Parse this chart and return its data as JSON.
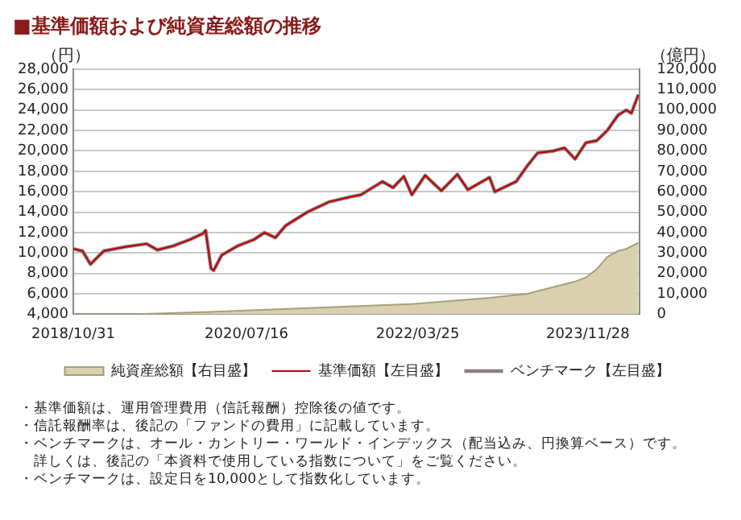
{
  "chart_data": {
    "type": "line",
    "title": "■基準価額および純資産総額の推移",
    "ylabel": "（円）",
    "y2label": "（億円）",
    "xlim": [
      "2018-10-31",
      "2024-05-31"
    ],
    "xticks": [
      {
        "value": "2018-10-31",
        "label": "2018/10/31"
      },
      {
        "value": "2020-07-16",
        "label": "2020/07/16"
      },
      {
        "value": "2022-03-25",
        "label": "2022/03/25"
      },
      {
        "value": "2023-11-28",
        "label": "2023/11/28"
      }
    ],
    "ylim": [
      4000,
      28000
    ],
    "yticks": [
      {
        "value": 4000,
        "label": "4,000"
      },
      {
        "value": 6000,
        "label": "6,000"
      },
      {
        "value": 8000,
        "label": "8,000"
      },
      {
        "value": 10000,
        "label": "10,000"
      },
      {
        "value": 12000,
        "label": "12,000"
      },
      {
        "value": 14000,
        "label": "14,000"
      },
      {
        "value": 16000,
        "label": "16,000"
      },
      {
        "value": 18000,
        "label": "18,000"
      },
      {
        "value": 20000,
        "label": "20,000"
      },
      {
        "value": 22000,
        "label": "22,000"
      },
      {
        "value": 24000,
        "label": "24,000"
      },
      {
        "value": 26000,
        "label": "26,000"
      },
      {
        "value": 28000,
        "label": "28,000"
      }
    ],
    "y2lim": [
      0,
      120000
    ],
    "y2ticks": [
      0,
      {
        "value": 10000,
        "label": "10,000"
      },
      {
        "value": 20000,
        "label": "20,000"
      },
      {
        "value": 30000,
        "label": "30,000"
      },
      {
        "value": 40000,
        "label": "40,000"
      },
      {
        "value": 50000,
        "label": "50,000"
      },
      {
        "value": 60000,
        "label": "60,000"
      },
      {
        "value": 70000,
        "label": "70,000"
      },
      {
        "value": 80000,
        "label": "80,000"
      },
      {
        "value": 90000,
        "label": "90,000"
      },
      {
        "value": 100000,
        "label": "100,000"
      },
      {
        "value": 110000,
        "label": "110,000"
      },
      {
        "value": 120000,
        "label": "120,000"
      }
    ],
    "grid": "y",
    "legend": "bottom",
    "series": [
      {
        "name": "純資産総額【右目盛】",
        "type": "area",
        "axis": "y2",
        "color": "#d8d0b0",
        "x": [
          "2018-10-31",
          "2019-06-01",
          "2020-02-06",
          "2021-02-20",
          "2022-03-04",
          "2022-12-09",
          "2023-04-23",
          "2023-10-13",
          "2023-11-21",
          "2023-12-30",
          "2024-02-06",
          "2024-03-16",
          "2024-04-14",
          "2024-05-28"
        ],
        "values": [
          0,
          0,
          1000,
          3000,
          5000,
          8000,
          10000,
          16000,
          18000,
          22000,
          28000,
          31000,
          32000,
          35000
        ]
      },
      {
        "name": "基準価額【左目盛】",
        "type": "line",
        "color": "#c00000",
        "x": [
          "2018-10-31",
          "2018-12-03",
          "2019-01-01",
          "2019-02-18",
          "2019-05-06",
          "2019-07-22",
          "2019-08-30",
          "2019-10-27",
          "2019-12-24",
          "2020-02-10",
          "2020-02-20",
          "2020-03-10",
          "2020-03-20",
          "2020-04-18",
          "2020-06-15",
          "2020-08-11",
          "2020-09-19",
          "2020-10-28",
          "2020-12-05",
          "2021-02-20",
          "2021-05-09",
          "2021-07-25",
          "2021-09-01",
          "2021-11-18",
          "2021-12-26",
          "2022-02-03",
          "2022-03-04",
          "2022-04-21",
          "2022-06-18",
          "2022-08-15",
          "2022-09-22",
          "2022-12-09",
          "2022-12-28",
          "2023-03-15",
          "2023-04-23",
          "2023-05-31",
          "2023-07-28",
          "2023-09-05",
          "2023-10-13",
          "2023-11-21",
          "2023-12-30",
          "2024-02-06",
          "2024-03-16",
          "2024-04-14",
          "2024-05-03",
          "2024-05-28"
        ],
        "values": [
          10400,
          10200,
          8900,
          10200,
          10600,
          10900,
          10300,
          10700,
          11300,
          11900,
          12200,
          8500,
          8300,
          9800,
          10700,
          11300,
          12000,
          11500,
          12700,
          14000,
          15000,
          15500,
          15700,
          17000,
          16400,
          17500,
          15700,
          17600,
          16100,
          17700,
          16200,
          17400,
          16000,
          17000,
          18500,
          19800,
          20000,
          20300,
          19200,
          20800,
          21000,
          22000,
          23500,
          24000,
          23700,
          25500
        ]
      },
      {
        "name": "ベンチマーク【左目盛】",
        "type": "line",
        "color": "#8c8080",
        "x": [
          "2018-10-31",
          "2018-12-03",
          "2019-01-01",
          "2019-02-18",
          "2019-05-06",
          "2019-07-22",
          "2019-08-30",
          "2019-10-27",
          "2019-12-24",
          "2020-02-10",
          "2020-02-20",
          "2020-03-10",
          "2020-03-20",
          "2020-04-18",
          "2020-06-15",
          "2020-08-11",
          "2020-09-19",
          "2020-10-28",
          "2020-12-05",
          "2021-02-20",
          "2021-05-09",
          "2021-07-25",
          "2021-09-01",
          "2021-11-18",
          "2021-12-26",
          "2022-02-03",
          "2022-03-04",
          "2022-04-21",
          "2022-06-18",
          "2022-08-15",
          "2022-09-22",
          "2022-12-09",
          "2022-12-28",
          "2023-03-15",
          "2023-04-23",
          "2023-05-31",
          "2023-07-28",
          "2023-09-05",
          "2023-10-13",
          "2023-11-21",
          "2023-12-30",
          "2024-02-06",
          "2024-03-16",
          "2024-04-14",
          "2024-05-03",
          "2024-05-28"
        ],
        "values": [
          10400,
          10200,
          8900,
          10200,
          10600,
          10900,
          10300,
          10700,
          11300,
          11900,
          12200,
          8500,
          8300,
          9800,
          10700,
          11300,
          12000,
          11500,
          12700,
          14000,
          15000,
          15500,
          15700,
          17000,
          16400,
          17500,
          15700,
          17600,
          16100,
          17700,
          16200,
          17400,
          16000,
          17000,
          18500,
          19800,
          20000,
          20300,
          19200,
          20800,
          21000,
          22000,
          23500,
          24000,
          23700,
          25500
        ]
      }
    ],
    "annotations": [
      "・基準価額は、運用管理費用（信託報酬）控除後の値です。",
      "・信託報酬率は、後記の「ファンドの費用」に記載しています。",
      "・ベンチマークは、オール・カントリー・ワールド・インデックス（配当込み、円換算ベース）です。",
      "　詳しくは、後記の「本資料で使用している指数について」をご覧ください。",
      "・ベンチマークは、設定日を10,000として指数化しています。"
    ]
  }
}
